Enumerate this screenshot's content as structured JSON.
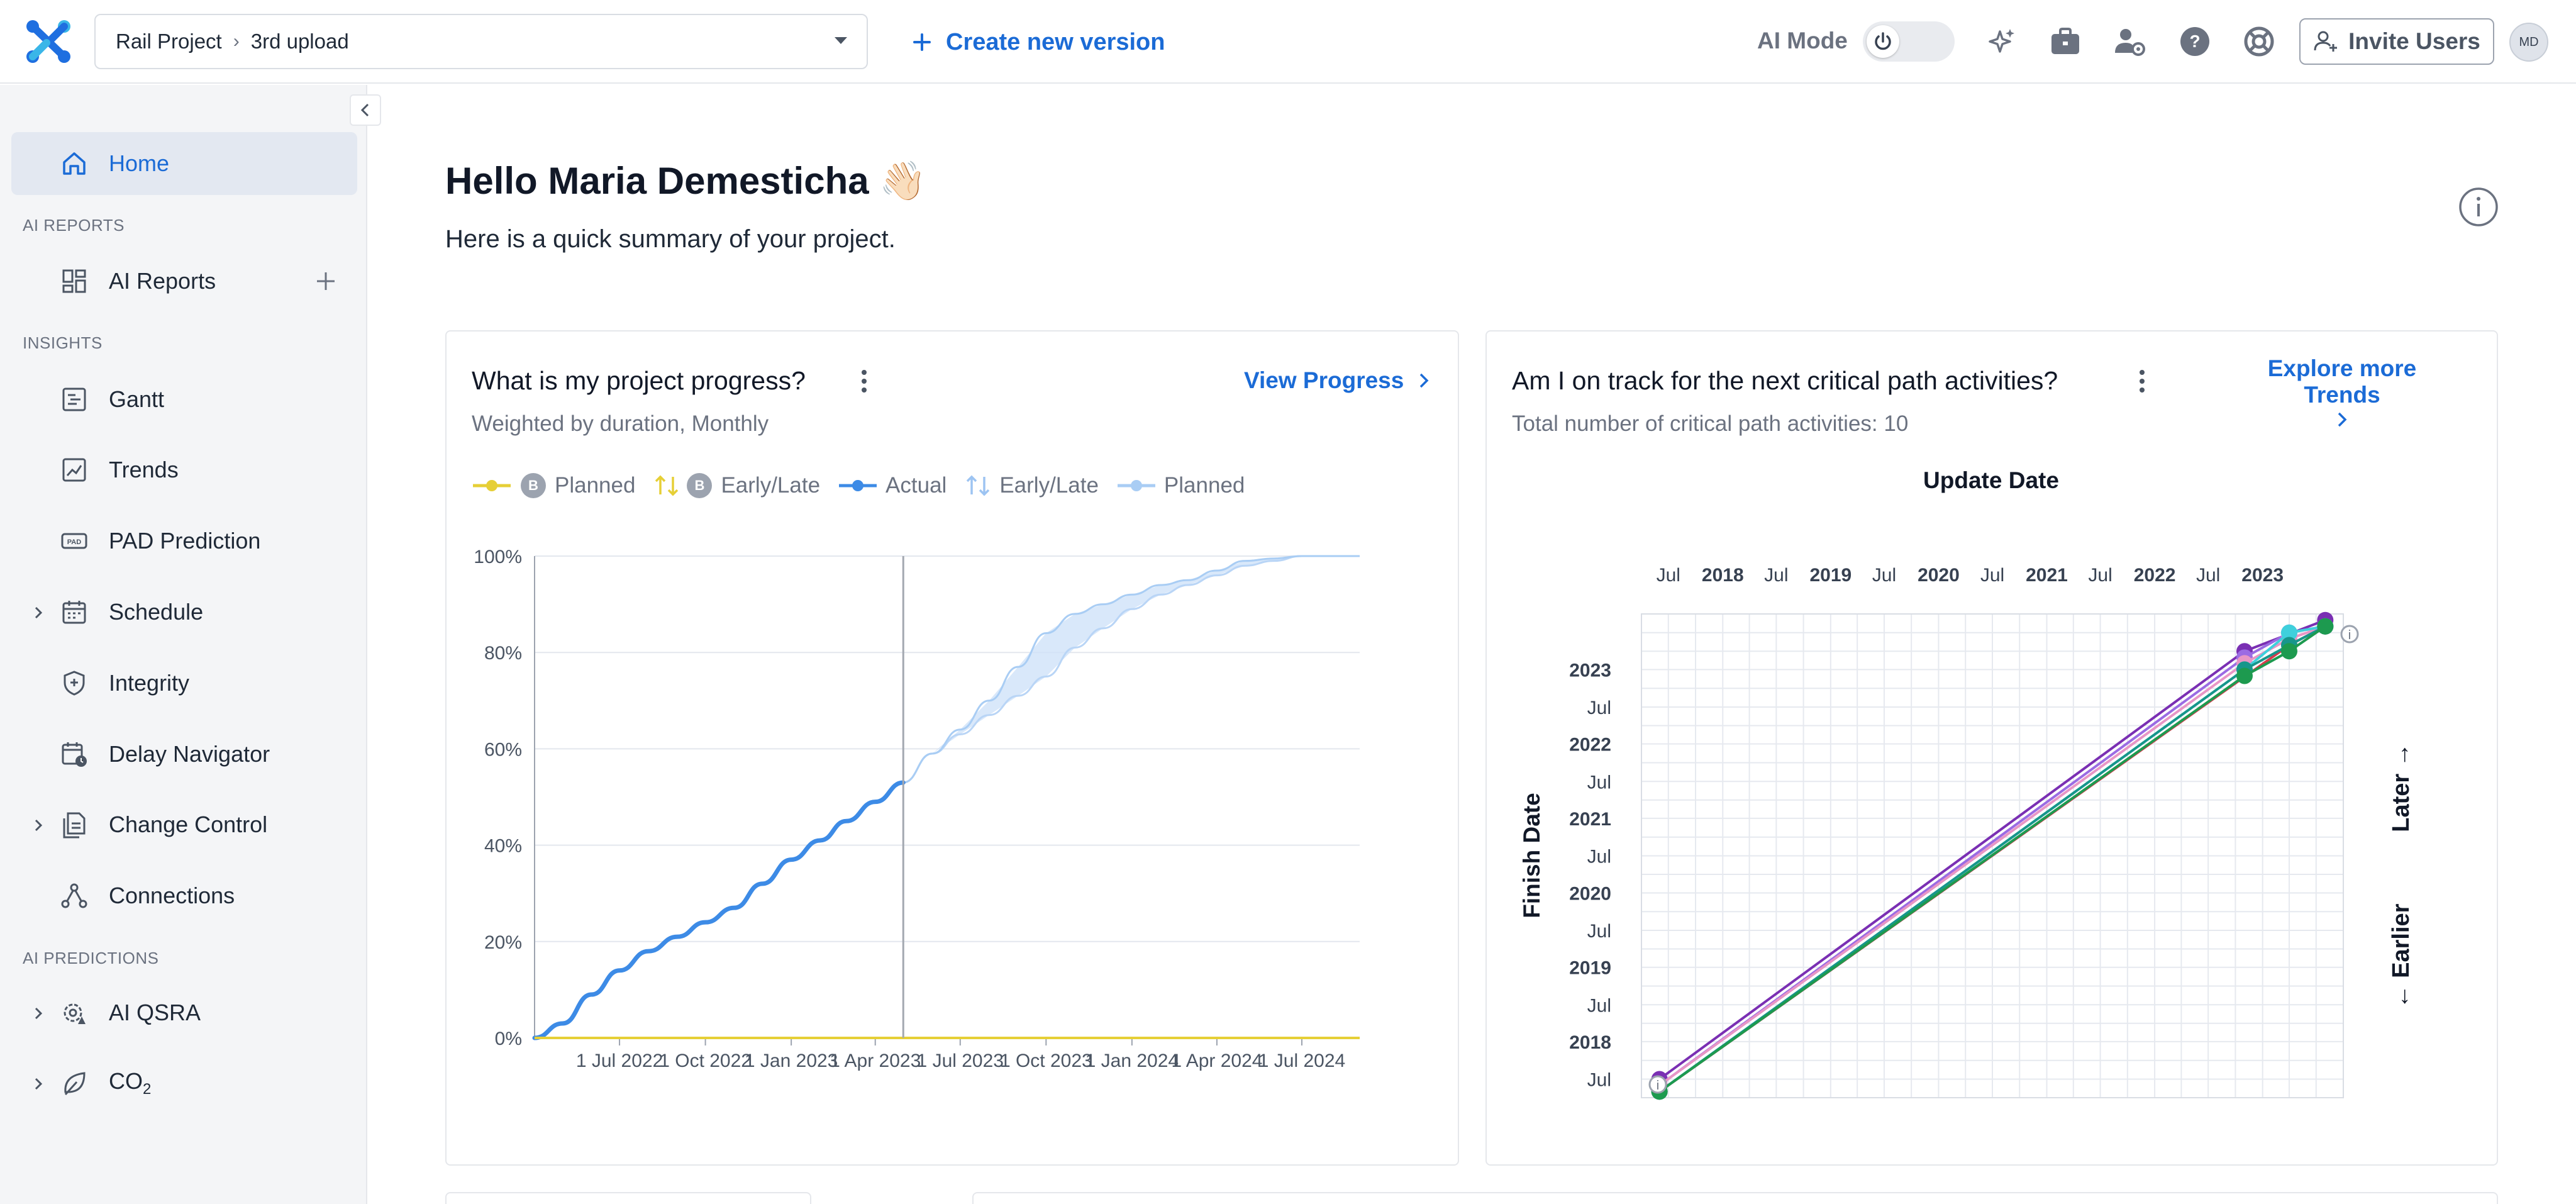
{
  "header": {
    "project": "Rail Project",
    "version": "3rd upload",
    "create_version": "Create new version",
    "ai_mode": "AI Mode",
    "invite": "Invite Users",
    "avatar_initials": "MD"
  },
  "sidebar": {
    "home": "Home",
    "section_ai_reports": "AI REPORTS",
    "ai_reports": "AI Reports",
    "section_insights": "INSIGHTS",
    "gantt": "Gantt",
    "trends": "Trends",
    "pad_prediction": "PAD Prediction",
    "schedule": "Schedule",
    "integrity": "Integrity",
    "delay_navigator": "Delay Navigator",
    "change_control": "Change Control",
    "connections": "Connections",
    "section_ai_predictions": "AI PREDICTIONS",
    "ai_qsra": "AI QSRA",
    "co2": "CO",
    "co2_sub": "2"
  },
  "main": {
    "greeting": "Hello Maria Demesticha 👋🏻",
    "subtitle": "Here is a quick summary of your project."
  },
  "progress_card": {
    "title": "What is my project progress?",
    "subtitle": "Weighted by duration, Monthly",
    "link": "View Progress",
    "legend": [
      {
        "label": "Planned",
        "badge": "B",
        "color": "#e6cf36"
      },
      {
        "label": "Early/Late",
        "badge": "B",
        "color": "#e6cf36"
      },
      {
        "label": "Actual",
        "color": "#3d8be6"
      },
      {
        "label": "Early/Late",
        "color": "#9dc4f2"
      },
      {
        "label": "Planned",
        "color": "#a9cdf4"
      }
    ]
  },
  "trends_card": {
    "title": "Am I on track for the next critical path activities?",
    "subtitle": "Total number of critical path activities: 10",
    "link_line1": "Explore more Trends",
    "top_axis_title": "Update Date",
    "y_axis_title": "Finish Date",
    "later": "Later →",
    "earlier": "← Earlier"
  },
  "chart_data": [
    {
      "type": "line",
      "title": "What is my project progress?",
      "subtitle": "Weighted by duration, Monthly",
      "x_tick_labels": [
        "1 Jul 2022",
        "1 Oct 2022",
        "1 Jan 2023",
        "1 Apr 2023",
        "1 Jul 2023",
        "1 Oct 2023",
        "1 Jan 2024",
        "1 Apr 2024",
        "1 Jul 2024"
      ],
      "y_tick_labels": [
        "0%",
        "20%",
        "40%",
        "60%",
        "80%",
        "100%"
      ],
      "ylim": [
        0,
        100
      ],
      "data_date": "2023-05-01",
      "series": [
        {
          "name": "Actual",
          "color": "#3d8be6",
          "points": [
            [
              "2022-04-01",
              0
            ],
            [
              "2022-05-01",
              3
            ],
            [
              "2022-06-01",
              9
            ],
            [
              "2022-07-01",
              14
            ],
            [
              "2022-08-01",
              18
            ],
            [
              "2022-09-01",
              21
            ],
            [
              "2022-10-01",
              24
            ],
            [
              "2022-11-01",
              27
            ],
            [
              "2022-12-01",
              32
            ],
            [
              "2023-01-01",
              37
            ],
            [
              "2023-02-01",
              41
            ],
            [
              "2023-03-01",
              45
            ],
            [
              "2023-04-01",
              49
            ],
            [
              "2023-05-01",
              53
            ]
          ]
        },
        {
          "name": "Planned",
          "color": "#a9cdf4",
          "points": [
            [
              "2023-05-01",
              53
            ],
            [
              "2023-06-01",
              59
            ],
            [
              "2023-07-01",
              64
            ],
            [
              "2023-08-01",
              70
            ],
            [
              "2023-09-01",
              77
            ],
            [
              "2023-10-01",
              84
            ],
            [
              "2023-11-01",
              88
            ],
            [
              "2023-12-01",
              90
            ],
            [
              "2024-01-01",
              92
            ],
            [
              "2024-02-01",
              94
            ],
            [
              "2024-03-01",
              95
            ],
            [
              "2024-04-01",
              97
            ],
            [
              "2024-05-01",
              99
            ],
            [
              "2024-06-01",
              99.5
            ],
            [
              "2024-07-01",
              100
            ],
            [
              "2024-09-01",
              100
            ]
          ]
        },
        {
          "name": "Early/Late",
          "color": "#c6dcf7",
          "points": [
            [
              "2023-05-01",
              53
            ],
            [
              "2023-06-01",
              59
            ],
            [
              "2023-07-01",
              63
            ],
            [
              "2023-08-01",
              67
            ],
            [
              "2023-09-01",
              71
            ],
            [
              "2023-10-01",
              75
            ],
            [
              "2023-11-01",
              81
            ],
            [
              "2023-12-01",
              85
            ],
            [
              "2024-01-01",
              89
            ],
            [
              "2024-02-01",
              92
            ],
            [
              "2024-03-01",
              94
            ],
            [
              "2024-04-01",
              96
            ],
            [
              "2024-05-01",
              98
            ],
            [
              "2024-06-01",
              99
            ],
            [
              "2024-07-01",
              100
            ],
            [
              "2024-09-01",
              100
            ]
          ]
        },
        {
          "name": "Planned (B)",
          "color": "#e6cf36",
          "points": [
            [
              "2022-04-01",
              0
            ],
            [
              "2024-09-01",
              0
            ]
          ]
        }
      ]
    },
    {
      "type": "line",
      "title": "Am I on track for the next critical path activities?",
      "x_axis_title": "Update Date",
      "y_axis_title": "Finish Date",
      "x_tick_labels": [
        "Jul",
        "2018",
        "Jul",
        "2019",
        "Jul",
        "2020",
        "Jul",
        "2021",
        "Jul",
        "2022",
        "Jul",
        "2023"
      ],
      "y_tick_labels": [
        "Jul",
        "2018",
        "Jul",
        "2019",
        "Jul",
        "2020",
        "Jul",
        "2021",
        "Jul",
        "2022",
        "Jul",
        "2023"
      ],
      "xlim": [
        "2017-04-01",
        "2023-10-01"
      ],
      "ylim": [
        "2017-04-01",
        "2023-10-01"
      ],
      "series": [
        {
          "color": "#7a2fb3",
          "points": [
            [
              "2017-06-01",
              "2017-07-01"
            ],
            [
              "2022-11-01",
              "2023-04-01"
            ],
            [
              "2023-08-01",
              "2023-09-01"
            ]
          ]
        },
        {
          "color": "#9b6be3",
          "points": [
            [
              "2017-06-01",
              "2017-06-01"
            ],
            [
              "2022-11-01",
              "2023-03-01"
            ],
            [
              "2023-04-01",
              "2023-07-01"
            ],
            [
              "2023-08-01",
              "2023-08-01"
            ]
          ]
        },
        {
          "color": "#d63a4a",
          "points": [
            [
              "2017-06-01",
              "2017-05-01"
            ],
            [
              "2023-04-01",
              "2023-05-01"
            ],
            [
              "2023-08-01",
              "2023-08-01"
            ]
          ]
        },
        {
          "color": "#e896c6",
          "points": [
            [
              "2017-06-01",
              "2017-06-01"
            ],
            [
              "2022-11-01",
              "2023-02-01"
            ],
            [
              "2023-04-01",
              "2023-06-01"
            ],
            [
              "2023-08-01",
              "2023-08-01"
            ]
          ]
        },
        {
          "color": "#3fd0dc",
          "points": [
            [
              "2017-06-01",
              "2017-05-01"
            ],
            [
              "2022-11-01",
              "2023-01-01"
            ],
            [
              "2023-04-01",
              "2023-07-01"
            ],
            [
              "2023-08-01",
              "2023-08-01"
            ]
          ]
        },
        {
          "color": "#17968b",
          "points": [
            [
              "2017-06-01",
              "2017-05-01"
            ],
            [
              "2022-11-01",
              "2023-01-01"
            ],
            [
              "2023-04-01",
              "2023-05-01"
            ],
            [
              "2023-08-01",
              "2023-08-01"
            ]
          ]
        },
        {
          "color": "#1d9a4f",
          "points": [
            [
              "2017-06-01",
              "2017-05-01"
            ],
            [
              "2022-11-01",
              "2022-12-01"
            ],
            [
              "2023-04-01",
              "2023-04-01"
            ],
            [
              "2023-08-01",
              "2023-08-01"
            ]
          ]
        }
      ]
    }
  ]
}
